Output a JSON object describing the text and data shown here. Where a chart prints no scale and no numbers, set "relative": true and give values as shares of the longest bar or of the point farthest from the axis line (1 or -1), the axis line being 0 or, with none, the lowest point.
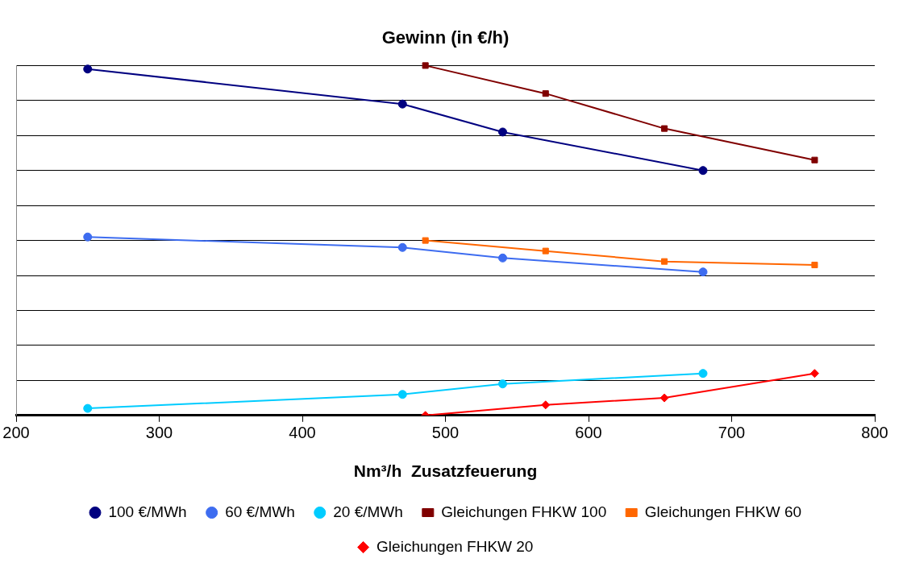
{
  "chart_data": {
    "type": "line",
    "title": "Gewinn (in €/h)",
    "xlabel": "Nm³/h  Zusatzfeuerung",
    "xlim": [
      200,
      800
    ],
    "xticks": [
      200,
      300,
      400,
      500,
      600,
      700,
      800
    ],
    "relative": true,
    "grid": "y",
    "legend": "bottom",
    "line_style": "solid",
    "series": [
      {
        "name": "100 €/MWh",
        "color": "#000080",
        "marker": "circle",
        "x": [
          250,
          470,
          540,
          680
        ],
        "values": [
          0.99,
          0.89,
          0.81,
          0.7
        ]
      },
      {
        "name": "60 €/MWh",
        "color": "#3d6cf0",
        "marker": "circle",
        "x": [
          250,
          470,
          540,
          680
        ],
        "values": [
          0.51,
          0.48,
          0.45,
          0.41
        ]
      },
      {
        "name": "20 €/MWh",
        "color": "#00ccff",
        "marker": "circle",
        "x": [
          250,
          470,
          540,
          680
        ],
        "values": [
          0.02,
          0.06,
          0.09,
          0.12
        ]
      },
      {
        "name": "Gleichungen FHKW 100",
        "color": "#800000",
        "marker": "square",
        "x": [
          486,
          570,
          653,
          758
        ],
        "values": [
          1,
          0.92,
          0.82,
          0.73
        ]
      },
      {
        "name": "Gleichungen FHKW 60",
        "color": "#ff6600",
        "marker": "square",
        "x": [
          486,
          570,
          653,
          758
        ],
        "values": [
          0.5,
          0.47,
          0.44,
          0.43
        ]
      },
      {
        "name": "Gleichungen FHKW 20",
        "color": "#ff0000",
        "marker": "diamond",
        "x": [
          486,
          570,
          653,
          758
        ],
        "values": [
          0,
          0.03,
          0.05,
          0.12
        ]
      }
    ]
  }
}
